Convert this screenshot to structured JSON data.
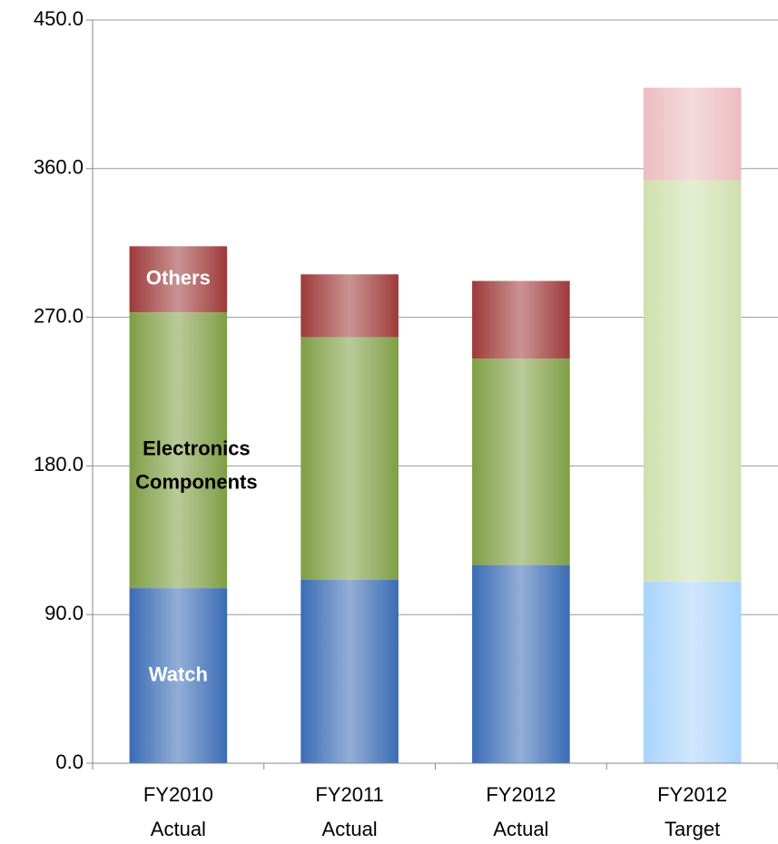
{
  "chart_data": {
    "type": "stacked_bar",
    "categories": [
      "FY2010 Actual",
      "FY2011 Actual",
      "FY2012 Actual",
      "FY2012 Target"
    ],
    "series": [
      {
        "name": "Watch",
        "color": "#3a6cb4",
        "colors": [
          "#3a6cb4",
          "#3a6cb4",
          "#3a6cb4",
          "#a9d4fb"
        ],
        "label_color": "#ffffff",
        "values": [
          106,
          111,
          120,
          110
        ]
      },
      {
        "name": "Electronics Components",
        "color": "#7f9e45",
        "colors": [
          "#7f9e45",
          "#7f9e45",
          "#7f9e45",
          "#cfe0ad"
        ],
        "label_color": "#000000",
        "values": [
          167,
          147,
          125,
          243
        ]
      },
      {
        "name": "Others",
        "color": "#9e3a3a",
        "colors": [
          "#9e3a3a",
          "#9e3a3a",
          "#9e3a3a",
          "#ecbcc0"
        ],
        "label_color": "#ffffff",
        "values": [
          40,
          38,
          47,
          56
        ]
      }
    ],
    "ylim": [
      0,
      450
    ],
    "yticks": [
      {
        "value": 0,
        "label": "0.0"
      },
      {
        "value": 90,
        "label": "90.0"
      },
      {
        "value": 180,
        "label": "180.0"
      },
      {
        "value": 270,
        "label": "270.0"
      },
      {
        "value": 360,
        "label": "360.0"
      },
      {
        "value": 450,
        "label": "450.0"
      }
    ],
    "grid": true
  }
}
